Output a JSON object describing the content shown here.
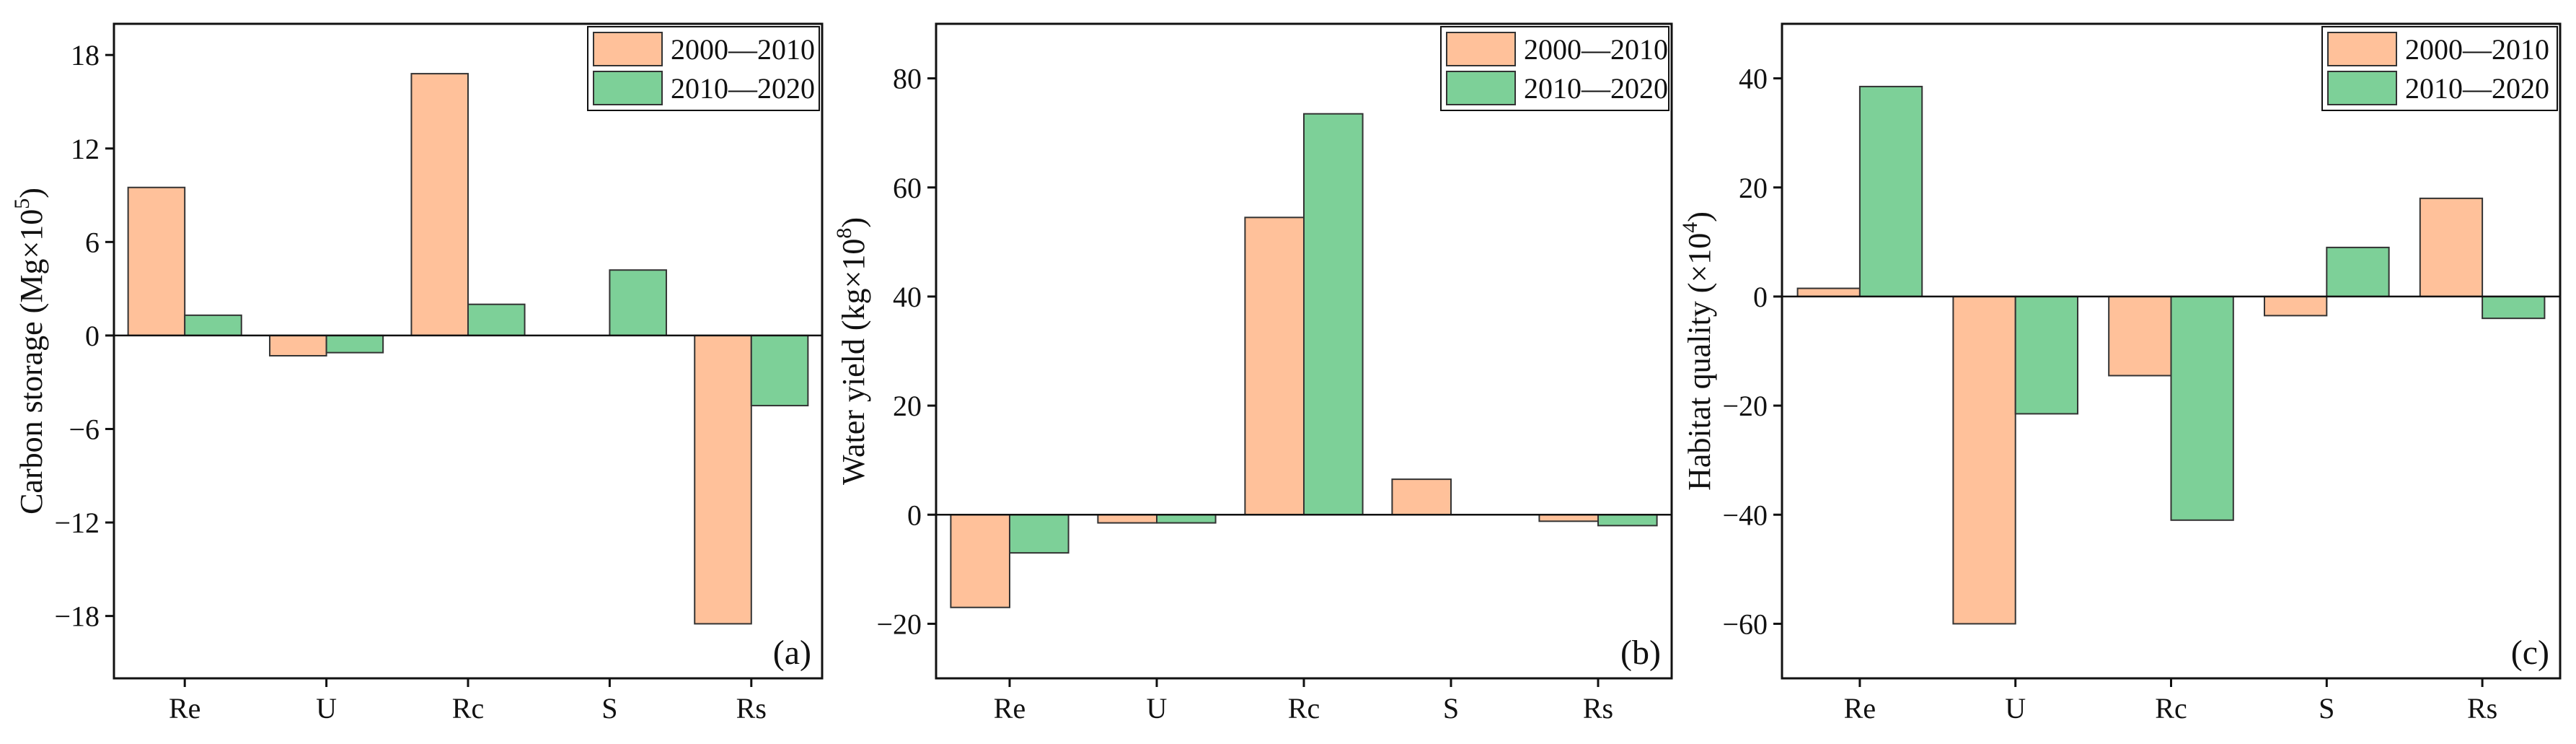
{
  "colors": {
    "period1": "#FFC19A",
    "period2": "#7DD098",
    "stroke": "#333333"
  },
  "legend": [
    "2000—2010",
    "2010—2020"
  ],
  "categories": [
    "Re",
    "U",
    "Rc",
    "S",
    "Rs"
  ],
  "chart_data": [
    {
      "type": "bar",
      "panel_label": "(a)",
      "ylabel": "Carbon storage (Mg×10⁵)",
      "ylabel_main": "Carbon storage (Mg×10",
      "ylabel_sup": "5",
      "ylabel_end": ")",
      "categories": [
        "Re",
        "U",
        "Rc",
        "S",
        "Rs"
      ],
      "series": [
        {
          "name": "2000—2010",
          "values": [
            9.5,
            -1.3,
            16.8,
            0,
            -18.5
          ]
        },
        {
          "name": "2010—2020",
          "values": [
            1.3,
            -1.1,
            2.0,
            4.2,
            -4.5
          ]
        }
      ],
      "ylim": [
        -22,
        20
      ],
      "yticks": [
        -18,
        -12,
        -6,
        0,
        6,
        12,
        18
      ],
      "ytick_labels": [
        "−18",
        "−12",
        "−6",
        "0",
        "6",
        "12",
        "18"
      ],
      "legend": "top-right",
      "grid": false
    },
    {
      "type": "bar",
      "panel_label": "(b)",
      "ylabel": "Water yield (kg×10⁸)",
      "ylabel_main": "Water yield (kg×10",
      "ylabel_sup": "8",
      "ylabel_end": ")",
      "categories": [
        "Re",
        "U",
        "Rc",
        "S",
        "Rs"
      ],
      "series": [
        {
          "name": "2000—2010",
          "values": [
            -17,
            -1.5,
            54.5,
            6.5,
            -1.2
          ]
        },
        {
          "name": "2010—2020",
          "values": [
            -7,
            -1.5,
            73.5,
            0,
            -2
          ]
        }
      ],
      "ylim": [
        -30,
        90
      ],
      "yticks": [
        -20,
        0,
        20,
        40,
        60,
        80
      ],
      "ytick_labels": [
        "−20",
        "0",
        "20",
        "40",
        "60",
        "80"
      ],
      "legend": "top-right",
      "grid": false
    },
    {
      "type": "bar",
      "panel_label": "(c)",
      "ylabel": "Habitat quality (×10⁴)",
      "ylabel_main": "Habitat quality (×10",
      "ylabel_sup": "4",
      "ylabel_end": ")",
      "categories": [
        "Re",
        "U",
        "Rc",
        "S",
        "Rs"
      ],
      "series": [
        {
          "name": "2000—2010",
          "values": [
            1.5,
            -60,
            -14.5,
            -3.5,
            18
          ]
        },
        {
          "name": "2010—2020",
          "values": [
            38.5,
            -21.5,
            -41,
            9,
            -4
          ]
        }
      ],
      "ylim": [
        -70,
        50
      ],
      "yticks": [
        -60,
        -40,
        -20,
        0,
        20,
        40
      ],
      "ytick_labels": [
        "−60",
        "−40",
        "−20",
        "0",
        "20",
        "40"
      ],
      "legend": "top-right",
      "grid": false
    }
  ]
}
